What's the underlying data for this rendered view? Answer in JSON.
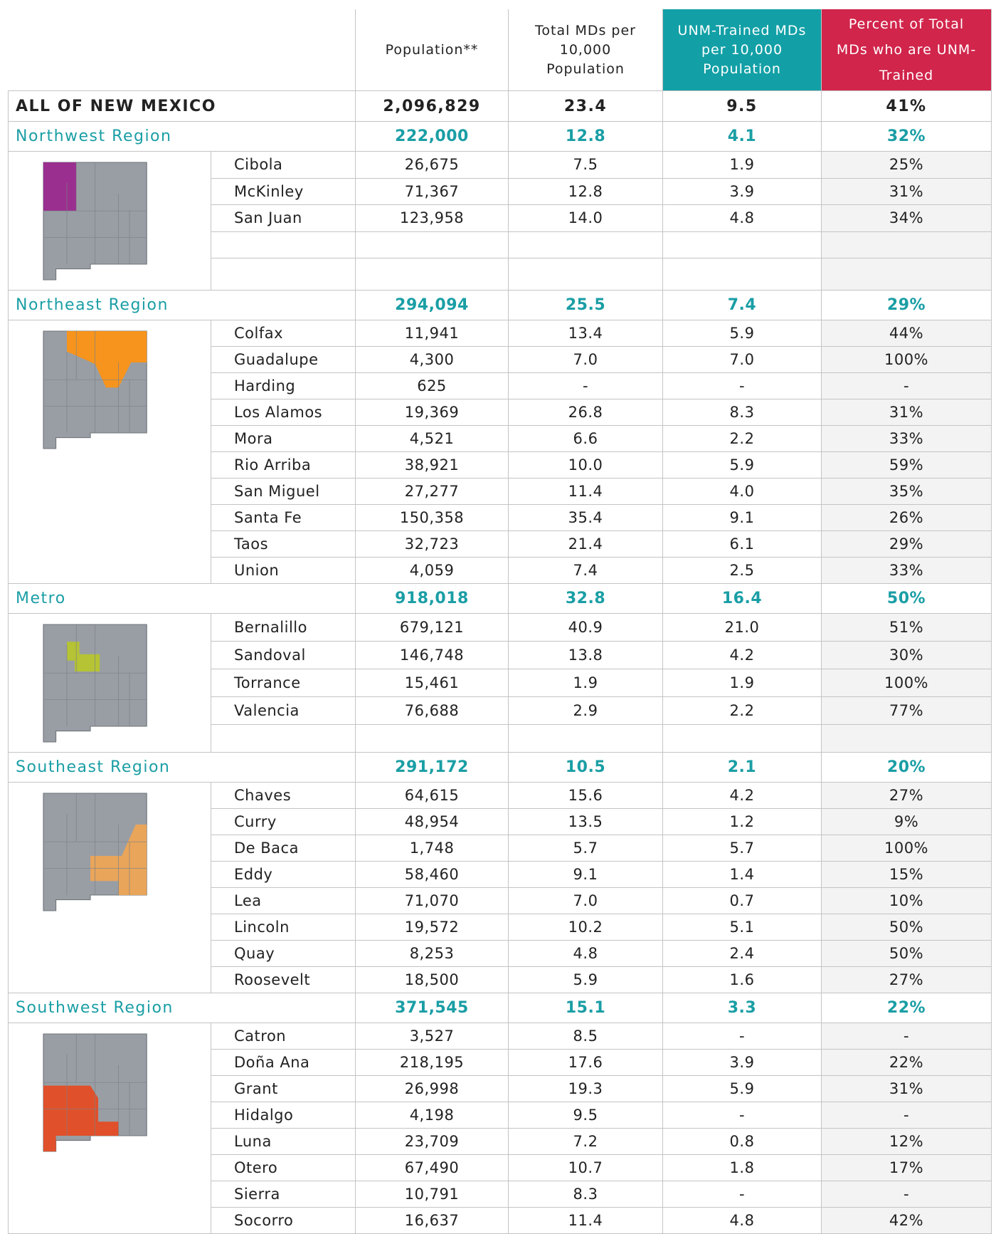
{
  "header": [
    "Population**",
    "Total MDs per 10,000 Population",
    "UNM-Trained MDs per 10,000 Population",
    "Percent of Total MDs who are UNM-Trained"
  ],
  "state": {
    "name": "ALL OF NEW MEXICO",
    "values": [
      "2,096,829",
      "23.4",
      "9.5",
      "41%"
    ]
  },
  "regions": [
    {
      "name": "Northwest Region",
      "values": [
        "222,000",
        "12.8",
        "4.1",
        "32%"
      ],
      "counties": [
        [
          "Cibola",
          "26,675",
          "7.5",
          "1.9",
          "25%"
        ],
        [
          "McKinley",
          "71,367",
          "12.8",
          "3.9",
          "31%"
        ],
        [
          "San Juan",
          "123,958",
          "14.0",
          "4.8",
          "34%"
        ]
      ]
    },
    {
      "name": "Northeast Region",
      "values": [
        "294,094",
        "25.5",
        "7.4",
        "29%"
      ],
      "counties": [
        [
          "Colfax",
          "11,941",
          "13.4",
          "5.9",
          "44%"
        ],
        [
          "Guadalupe",
          "4,300",
          "7.0",
          "7.0",
          "100%"
        ],
        [
          "Harding",
          "625",
          "-",
          "-",
          "-"
        ],
        [
          "Los Alamos",
          "19,369",
          "26.8",
          "8.3",
          "31%"
        ],
        [
          "Mora",
          "4,521",
          "6.6",
          "2.2",
          "33%"
        ],
        [
          "Rio Arriba",
          "38,921",
          "10.0",
          "5.9",
          "59%"
        ],
        [
          "San Miguel",
          "27,277",
          "11.4",
          "4.0",
          "35%"
        ],
        [
          "Santa Fe",
          "150,358",
          "35.4",
          "9.1",
          "26%"
        ],
        [
          "Taos",
          "32,723",
          "21.4",
          "6.1",
          "29%"
        ],
        [
          "Union",
          "4,059",
          "7.4",
          "2.5",
          "33%"
        ]
      ]
    },
    {
      "name": "Metro",
      "values": [
        "918,018",
        "32.8",
        "16.4",
        "50%"
      ],
      "counties": [
        [
          "Bernalillo",
          "679,121",
          "40.9",
          "21.0",
          "51%"
        ],
        [
          "Sandoval",
          "146,748",
          "13.8",
          "4.2",
          "30%"
        ],
        [
          "Torrance",
          "15,461",
          "1.9",
          "1.9",
          "100%"
        ],
        [
          "Valencia",
          "76,688",
          "2.9",
          "2.2",
          "77%"
        ]
      ]
    },
    {
      "name": "Southeast Region",
      "values": [
        "291,172",
        "10.5",
        "2.1",
        "20%"
      ],
      "counties": [
        [
          "Chaves",
          "64,615",
          "15.6",
          "4.2",
          "27%"
        ],
        [
          "Curry",
          "48,954",
          "13.5",
          "1.2",
          "9%"
        ],
        [
          "De Baca",
          "1,748",
          "5.7",
          "5.7",
          "100%"
        ],
        [
          "Eddy",
          "58,460",
          "9.1",
          "1.4",
          "15%"
        ],
        [
          "Lea",
          "71,070",
          "7.0",
          "0.7",
          "10%"
        ],
        [
          "Lincoln",
          "19,572",
          "10.2",
          "5.1",
          "50%"
        ],
        [
          "Quay",
          "8,253",
          "4.8",
          "2.4",
          "50%"
        ],
        [
          "Roosevelt",
          "18,500",
          "5.9",
          "1.6",
          "27%"
        ]
      ]
    },
    {
      "name": "Southwest Region",
      "values": [
        "371,545",
        "15.1",
        "3.3",
        "22%"
      ],
      "counties": [
        [
          "Catron",
          "3,527",
          "8.5",
          "-",
          "-"
        ],
        [
          "Doña Ana",
          "218,195",
          "17.6",
          "3.9",
          "22%"
        ],
        [
          "Grant",
          "26,998",
          "19.3",
          "5.9",
          "31%"
        ],
        [
          "Hidalgo",
          "4,198",
          "9.5",
          "-",
          "-"
        ],
        [
          "Luna",
          "23,709",
          "7.2",
          "0.8",
          "12%"
        ],
        [
          "Otero",
          "67,490",
          "10.7",
          "1.8",
          "17%"
        ],
        [
          "Sierra",
          "10,791",
          "8.3",
          "-",
          "-"
        ],
        [
          "Socorro",
          "16,637",
          "11.4",
          "4.8",
          "42%"
        ]
      ]
    }
  ]
}
